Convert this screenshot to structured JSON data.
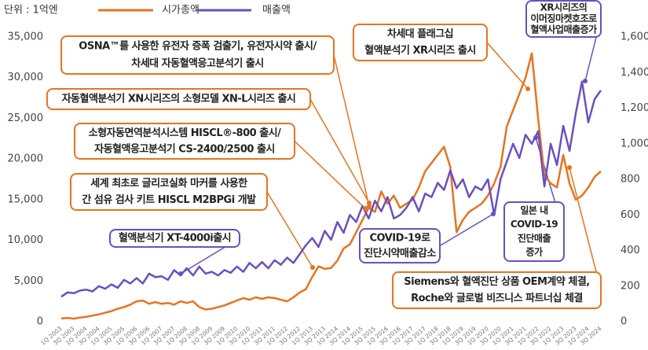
{
  "chart_data": {
    "type": "line",
    "unit_label": "단위 : 1억엔",
    "legend": "top-left",
    "grid": false,
    "categories": [
      "1Q 2003",
      null,
      "3Q 2003",
      null,
      "1Q 2004",
      null,
      "3Q 2004",
      null,
      "1Q 2005",
      null,
      "3Q 2005",
      null,
      "1Q 2006",
      null,
      "3Q 2006",
      null,
      "1Q 2007",
      null,
      "3Q 2007",
      null,
      "1Q 2008",
      null,
      "3Q 2008",
      null,
      "1Q 2009",
      null,
      "3Q 2009",
      null,
      "1Q 2010",
      null,
      "3Q 2010",
      null,
      "1Q 2011",
      null,
      "3Q 2011",
      null,
      "1Q 2012",
      null,
      "3Q 2012",
      null,
      "1Q 2013",
      null,
      "3Q 2013",
      null,
      "1Q 2014",
      null,
      "3Q 2014",
      null,
      "1Q 2015",
      null,
      "3Q 2015",
      null,
      "1Q 2016",
      null,
      "3Q 2016",
      null,
      "1Q 2017",
      null,
      "3Q 2017",
      null,
      "1Q 2018",
      null,
      "3Q 2018",
      null,
      "1Q 2019",
      null,
      "3Q 2019",
      null,
      "1Q 2020",
      null,
      "3Q 2020",
      null,
      "1Q 2021",
      null,
      "3Q 2021",
      null,
      "1Q 2022",
      null,
      "3Q 2022",
      null,
      "1Q 2023",
      null,
      "3Q 2023",
      null,
      "1Q 2024",
      null,
      "3Q 2024"
    ],
    "series": [
      {
        "name": "시가총액",
        "color": "#e8731e",
        "axis": "y",
        "values": [
          400,
          450,
          380,
          500,
          600,
          750,
          900,
          1100,
          1300,
          1600,
          1800,
          2100,
          2500,
          2600,
          2200,
          2400,
          2200,
          2300,
          2100,
          2500,
          2300,
          2500,
          1800,
          1500,
          1600,
          1800,
          2000,
          2300,
          2600,
          2900,
          2700,
          3000,
          2800,
          3000,
          2900,
          2700,
          2500,
          3000,
          3600,
          4000,
          5500,
          6800,
          6500,
          6600,
          7500,
          9000,
          9500,
          11000,
          12500,
          14000,
          13500,
          16000,
          14500,
          15500,
          14000,
          14500,
          15000,
          16500,
          18500,
          19500,
          20500,
          21500,
          19000,
          11000,
          12500,
          13500,
          14000,
          14500,
          15500,
          17000,
          19000,
          24000,
          26000,
          28000,
          30000,
          33000,
          25000,
          18000,
          17000,
          16500,
          20500,
          17000,
          15000,
          15500,
          16500,
          17800,
          18500
        ]
      },
      {
        "name": "매출액",
        "color": "#6a4fc3",
        "axis": "y2",
        "values": [
          140,
          165,
          160,
          175,
          180,
          170,
          200,
          185,
          210,
          190,
          235,
          215,
          245,
          215,
          270,
          250,
          255,
          235,
          290,
          260,
          300,
          260,
          310,
          270,
          280,
          260,
          290,
          275,
          310,
          280,
          330,
          300,
          335,
          300,
          345,
          320,
          360,
          330,
          380,
          430,
          470,
          420,
          510,
          460,
          560,
          500,
          600,
          560,
          650,
          580,
          680,
          620,
          700,
          580,
          600,
          640,
          700,
          620,
          720,
          700,
          780,
          740,
          850,
          750,
          800,
          700,
          760,
          740,
          800,
          600,
          800,
          900,
          1000,
          920,
          1050,
          1000,
          1070,
          760,
          1000,
          880,
          1100,
          960,
          1170,
          1350,
          1120,
          1250,
          1300
        ]
      }
    ],
    "ylim": [
      0,
      35000
    ],
    "yticks": [
      0,
      {
        "value": 5000,
        "label": "5,000"
      },
      {
        "value": 10000,
        "label": "10,000"
      },
      {
        "value": 15000,
        "label": "15,000"
      },
      {
        "value": 20000,
        "label": "20,000"
      },
      {
        "value": 25000,
        "label": "25,000"
      },
      {
        "value": 30000,
        "label": "30,000"
      },
      {
        "value": 35000,
        "label": "35,000"
      }
    ],
    "y2lim": [
      0,
      1600
    ],
    "y2ticks": [
      0,
      200,
      400,
      600,
      800,
      {
        "value": 1000,
        "label": "1,000"
      },
      {
        "value": 1200,
        "label": "1,200"
      },
      {
        "value": 1400,
        "label": "1,400"
      },
      {
        "value": 1600,
        "label": "1,600"
      }
    ],
    "annotations": [
      {
        "lines": [
          "OSNA™를 사용한 유전자 증폭 검출기, 유전자시약 출시/",
          "차세대 자동혈액응고분석기 출시"
        ],
        "color": "#e8731e"
      },
      {
        "lines": [
          "자동혈액분석기 XN시리즈의 소형모델 XN-L시리즈 출시"
        ],
        "color": "#e8731e"
      },
      {
        "lines": [
          "소형자동면역분석시스템 HISCL®-800 출시/",
          "자동혈액응고분석기 CS-2400/2500 출시"
        ],
        "color": "#e8731e"
      },
      {
        "lines": [
          "세계 최초로 글리코실화 마커를 사용한",
          "간 섬유 검사 키트 HISCL M2BPGi 개발"
        ],
        "color": "#e8731e"
      },
      {
        "lines": [
          "혈액분석기 XT-4000i출시"
        ],
        "color": "#6a4fc3"
      },
      {
        "lines": [
          "차세대 플래그십",
          "혈액분석기 XR시리즈 출시"
        ],
        "color": "#e8731e"
      },
      {
        "lines": [
          "XR시리즈의",
          "이머징마켓호조로",
          "혈액사업매출증가"
        ],
        "color": "#6a4fc3"
      },
      {
        "lines": [
          "COVID-19로",
          "진단시약매출감소"
        ],
        "color": "#6a4fc3"
      },
      {
        "lines": [
          "일본 내",
          "COVID-19",
          "진단매출",
          "증가"
        ],
        "color": "#6a4fc3"
      },
      {
        "lines": [
          "Siemens와 혈액진단 상품 OEM계약 체결,",
          "Roche와 글로벌 비즈니스 파트너십 체결"
        ],
        "color": "#e8731e"
      }
    ]
  }
}
